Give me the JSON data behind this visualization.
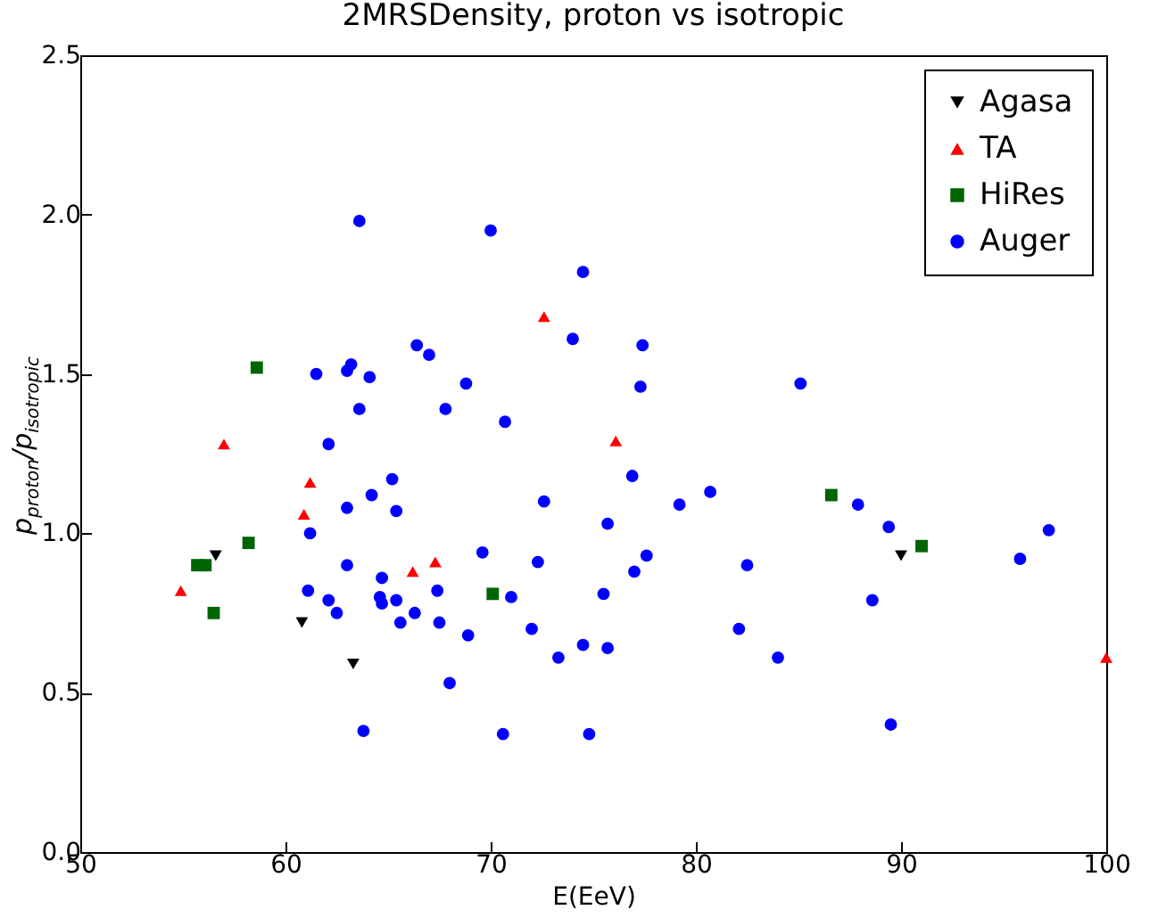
{
  "chart_data": {
    "type": "scatter",
    "title": "2MRSDensity, proton vs isotropic",
    "xlabel": "E(EeV)",
    "ylabel": "p$_{proton}$/p$_{isotropic}$",
    "xlim": [
      50,
      100
    ],
    "ylim": [
      0,
      2.5
    ],
    "xticks": [
      50,
      60,
      70,
      80,
      90,
      100
    ],
    "yticks": [
      {
        "value": 0,
        "label": "0.0"
      },
      {
        "value": 0.5,
        "label": "0.5"
      },
      {
        "value": 1,
        "label": "1.0"
      },
      {
        "value": 1.5,
        "label": "1.5"
      },
      {
        "value": 2,
        "label": "2.0"
      },
      {
        "value": 2.5,
        "label": "2.5"
      }
    ],
    "grid": false,
    "legend": "top right",
    "series": [
      {
        "name": "Agasa",
        "color": "#000000",
        "marker": "triangle-down",
        "x": [
          56.6,
          60.8,
          63.3,
          90.0
        ],
        "values": [
          0.93,
          0.72,
          0.59,
          0.93
        ]
      },
      {
        "name": "TA",
        "color": "#ff0000",
        "marker": "triangle",
        "x": [
          54.9,
          57.0,
          60.9,
          61.2,
          66.2,
          67.3,
          72.6,
          76.1,
          100
        ],
        "values": [
          0.82,
          1.28,
          1.06,
          1.16,
          0.88,
          0.91,
          1.68,
          1.29,
          0.61
        ]
      },
      {
        "name": "HiRes",
        "color": "#006400",
        "marker": "square",
        "x": [
          55.7,
          56.1,
          56.5,
          58.2,
          58.6,
          70.1,
          86.6,
          91.0
        ],
        "values": [
          0.9,
          0.9,
          0.75,
          0.97,
          1.52,
          0.81,
          1.12,
          0.96
        ]
      },
      {
        "name": "Auger",
        "color": "#0000ff",
        "marker": "circle",
        "x": [
          63.6,
          61.5,
          63.0,
          63.2,
          64.1,
          63.6,
          62.1,
          65.2,
          64.2,
          63.0,
          65.4,
          61.2,
          63.0,
          64.7,
          61.1,
          62.1,
          62.5,
          64.6,
          64.7,
          65.4,
          65.6,
          66.3,
          63.8,
          66.4,
          70.0,
          74.5,
          74.0,
          77.4,
          67.0,
          68.8,
          77.3,
          67.8,
          70.7,
          76.9,
          72.6,
          79.2,
          75.7,
          77.6,
          77.0,
          69.6,
          72.3,
          67.4,
          71.0,
          75.5,
          67.5,
          68.9,
          72.0,
          73.3,
          74.5,
          75.7,
          68.0,
          70.6,
          74.8,
          85.1,
          80.7,
          87.9,
          89.4,
          82.5,
          95.8,
          97.2,
          88.6,
          82.1,
          84.0,
          89.5
        ],
        "values": [
          1.98,
          1.5,
          1.51,
          1.53,
          1.49,
          1.39,
          1.28,
          1.17,
          1.12,
          1.08,
          1.07,
          1.0,
          0.9,
          0.86,
          0.82,
          0.79,
          0.75,
          0.8,
          0.78,
          0.79,
          0.72,
          0.75,
          0.38,
          1.59,
          1.95,
          1.82,
          1.61,
          1.59,
          1.56,
          1.47,
          1.46,
          1.39,
          1.35,
          1.18,
          1.1,
          1.09,
          1.03,
          0.93,
          0.88,
          0.94,
          0.91,
          0.82,
          0.8,
          0.81,
          0.72,
          0.68,
          0.7,
          0.61,
          0.65,
          0.64,
          0.53,
          0.37,
          0.37,
          1.47,
          1.13,
          1.09,
          1.02,
          0.9,
          0.92,
          1.01,
          0.79,
          0.7,
          0.61,
          0.4
        ]
      }
    ]
  }
}
